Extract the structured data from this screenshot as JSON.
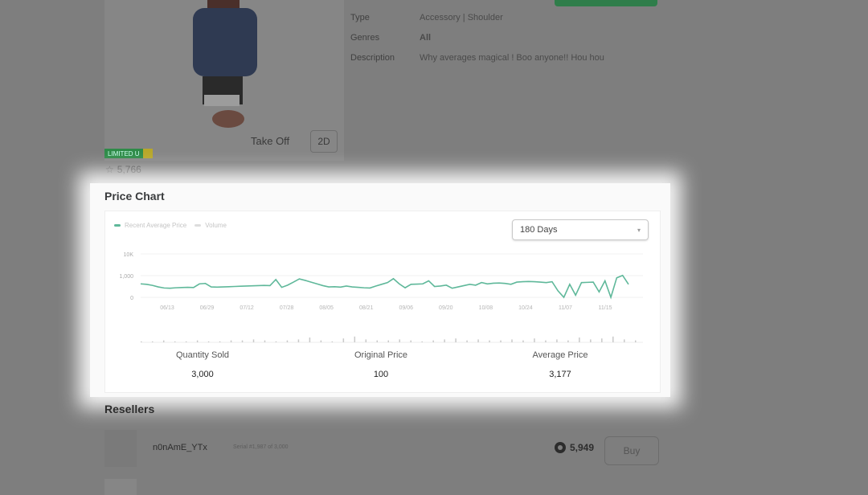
{
  "item": {
    "take_off_label": "Take Off",
    "view_2d_label": "2D",
    "limited_badge": "LIMITED U",
    "favorites": "5,766",
    "details": [
      {
        "key": "Type",
        "value": "Accessory | Shoulder"
      },
      {
        "key": "Genres",
        "value": "All"
      },
      {
        "key": "Description",
        "value": "Why averages magical ! Boo anyone!! Hou hou"
      }
    ]
  },
  "price_chart": {
    "title": "Price Chart",
    "legend": [
      "Recent Average Price",
      "Volume"
    ],
    "period_select": "180 Days",
    "colors": {
      "price": "#5fb89a",
      "volume": "#c9c9c9"
    },
    "stats": [
      {
        "label": "Quantity Sold",
        "value": "3,000"
      },
      {
        "label": "Original Price",
        "value": "100"
      },
      {
        "label": "Average Price",
        "value": "3,177"
      }
    ]
  },
  "chart_data": {
    "type": "line",
    "y_ticks": [
      "0",
      "1,000",
      "10K"
    ],
    "y_tick_values": [
      0,
      1000,
      10000
    ],
    "x_ticks": [
      "06/13",
      "06/29",
      "07/12",
      "07/28",
      "08/05",
      "08/21",
      "09/06",
      "09/20",
      "10/08",
      "10/24",
      "11/07",
      "11/15"
    ],
    "grid": true,
    "legend_position": "top-left",
    "series": [
      {
        "name": "Recent Average Price",
        "values": [
          620,
          600,
          550,
          480,
          430,
          420,
          440,
          450,
          460,
          450,
          620,
          640,
          480,
          470,
          480,
          490,
          500,
          510,
          520,
          530,
          540,
          550,
          540,
          820,
          460,
          560,
          700,
          850,
          780,
          700,
          620,
          540,
          480,
          490,
          470,
          520,
          480,
          460,
          440,
          430,
          520,
          600,
          680,
          860,
          620,
          440,
          600,
          610,
          620,
          760,
          500,
          520,
          560,
          420,
          480,
          540,
          600,
          560,
          680,
          620,
          650,
          660,
          640,
          600,
          700,
          720,
          730,
          720,
          700,
          680,
          720,
          300,
          0,
          600,
          100,
          680,
          690,
          700,
          250,
          760,
          0,
          900,
          1100,
          600
        ]
      },
      {
        "name": "Volume",
        "values": [
          1,
          1,
          2,
          1,
          1,
          2,
          1,
          1,
          2,
          2,
          3,
          2,
          1,
          2,
          3,
          5,
          2,
          1,
          4,
          6,
          3,
          2,
          2,
          3,
          2,
          1,
          2,
          3,
          4,
          2,
          3,
          2,
          2,
          3,
          2,
          4,
          2,
          3,
          2,
          5,
          3,
          4,
          6,
          3,
          2
        ]
      }
    ]
  },
  "resellers": {
    "title": "Resellers",
    "items": [
      {
        "name": "n0nAmE_YTx",
        "serial": "Serial #1,987 of 3,000",
        "price": "5,949",
        "buy_label": "Buy"
      }
    ]
  }
}
